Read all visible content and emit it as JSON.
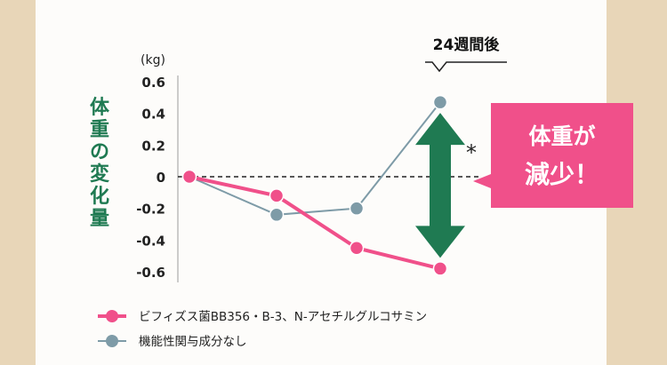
{
  "ylabel_vertical": "体重の変化量",
  "unit": "(kg)",
  "callout_week": "24週間後",
  "significance": "*",
  "badge": {
    "line1": "体重が",
    "line2": "減少！"
  },
  "colors": {
    "frame": "#e8d6b8",
    "paper": "#ffffff",
    "pink": "#f0508a",
    "gray": "#7e9ba7",
    "green": "#1f7a52",
    "badge": "#f0508a"
  },
  "chart_data": {
    "type": "line",
    "x": [
      0,
      1,
      2,
      3
    ],
    "ylim": [
      -0.6,
      0.6
    ],
    "ticks": [
      "0.6",
      "0.4",
      "0.2",
      "0",
      "-0.2",
      "-0.4",
      "-0.6"
    ],
    "tick_values": [
      0.6,
      0.4,
      0.2,
      0,
      -0.2,
      -0.4,
      -0.6
    ],
    "series": [
      {
        "name": "ビフィズス菌BB356・B-3、N-アセチルグルコサミン",
        "values": [
          0,
          -0.12,
          -0.45,
          -0.58
        ],
        "color": "#f0508a"
      },
      {
        "name": "機能性関与成分なし",
        "values": [
          0,
          -0.24,
          -0.2,
          0.47
        ],
        "color": "#7e9ba7"
      }
    ],
    "baseline": 0,
    "legend_position": "bottom-left"
  }
}
